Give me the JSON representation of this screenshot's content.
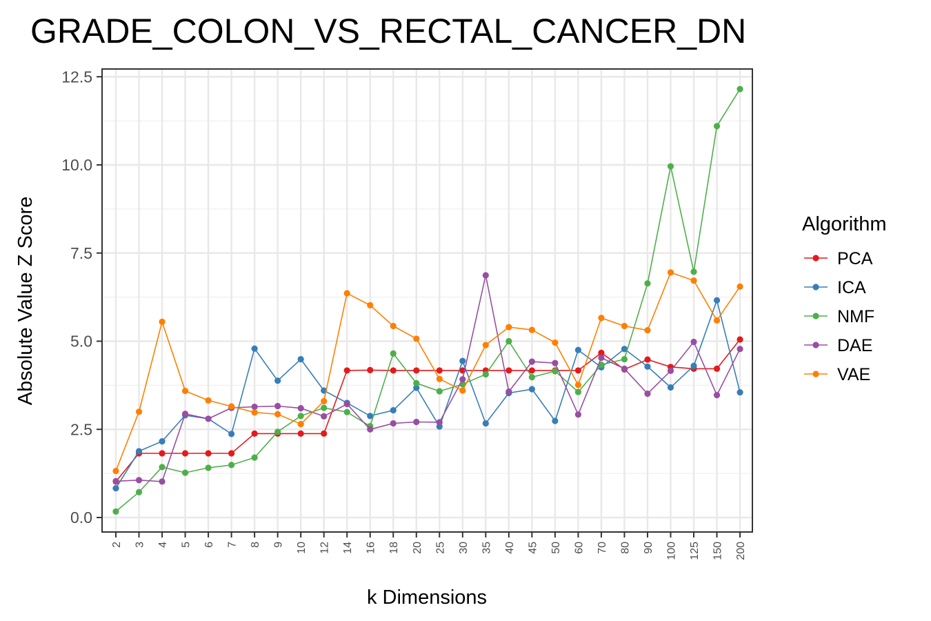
{
  "chart_data": {
    "type": "line",
    "title": "GRADE_COLON_VS_RECTAL_CANCER_DN",
    "xlabel": "k Dimensions",
    "ylabel": "Absolute Value Z Score",
    "categories": [
      "2",
      "3",
      "4",
      "5",
      "6",
      "7",
      "8",
      "9",
      "10",
      "12",
      "14",
      "16",
      "18",
      "20",
      "25",
      "30",
      "35",
      "40",
      "45",
      "50",
      "60",
      "70",
      "80",
      "90",
      "100",
      "125",
      "150",
      "200"
    ],
    "ylim": [
      -0.3,
      12.75
    ],
    "yticks": [
      "0.0",
      "2.5",
      "5.0",
      "7.5",
      "10.0",
      "12.5"
    ],
    "grid": true,
    "legend": {
      "title": "Algorithm",
      "position": "right"
    },
    "series": [
      {
        "name": "PCA",
        "color": "#e41a1c",
        "values": [
          1.02,
          1.82,
          1.82,
          1.82,
          1.82,
          1.82,
          2.38,
          2.38,
          2.38,
          2.38,
          4.17,
          4.18,
          4.17,
          4.17,
          4.17,
          4.17,
          4.17,
          4.17,
          4.17,
          4.17,
          4.17,
          4.67,
          4.2,
          4.48,
          4.27,
          4.22,
          4.22,
          5.05
        ]
      },
      {
        "name": "ICA",
        "color": "#377eb8",
        "values": [
          0.83,
          1.88,
          2.16,
          2.9,
          2.8,
          2.37,
          4.79,
          3.88,
          4.49,
          3.6,
          3.25,
          2.88,
          3.04,
          3.68,
          2.58,
          4.44,
          2.67,
          3.53,
          3.64,
          2.74,
          4.75,
          4.26,
          4.78,
          4.28,
          3.69,
          4.3,
          6.16,
          3.55
        ]
      },
      {
        "name": "NMF",
        "color": "#4daf4a",
        "values": [
          0.17,
          0.72,
          1.43,
          1.27,
          1.41,
          1.49,
          1.7,
          2.43,
          2.88,
          3.11,
          2.99,
          2.59,
          4.65,
          3.81,
          3.58,
          3.78,
          4.06,
          5.0,
          3.98,
          4.15,
          3.56,
          4.33,
          4.49,
          6.64,
          9.96,
          6.97,
          11.1,
          12.15
        ]
      },
      {
        "name": "DAE",
        "color": "#984ea3",
        "values": [
          1.03,
          1.06,
          1.02,
          2.94,
          2.8,
          3.11,
          3.14,
          3.16,
          3.1,
          2.87,
          3.22,
          2.5,
          2.67,
          2.71,
          2.7,
          3.92,
          6.87,
          3.57,
          4.42,
          4.38,
          2.92,
          4.53,
          4.22,
          3.51,
          4.16,
          4.98,
          3.47,
          4.78
        ]
      },
      {
        "name": "VAE",
        "color": "#ff7f00",
        "values": [
          1.32,
          3.0,
          5.55,
          3.59,
          3.32,
          3.15,
          2.98,
          2.93,
          2.65,
          3.3,
          6.36,
          6.02,
          5.43,
          5.07,
          3.93,
          3.6,
          4.89,
          5.4,
          5.32,
          4.96,
          3.76,
          5.66,
          5.43,
          5.31,
          6.95,
          6.72,
          5.59,
          6.55
        ]
      }
    ]
  }
}
